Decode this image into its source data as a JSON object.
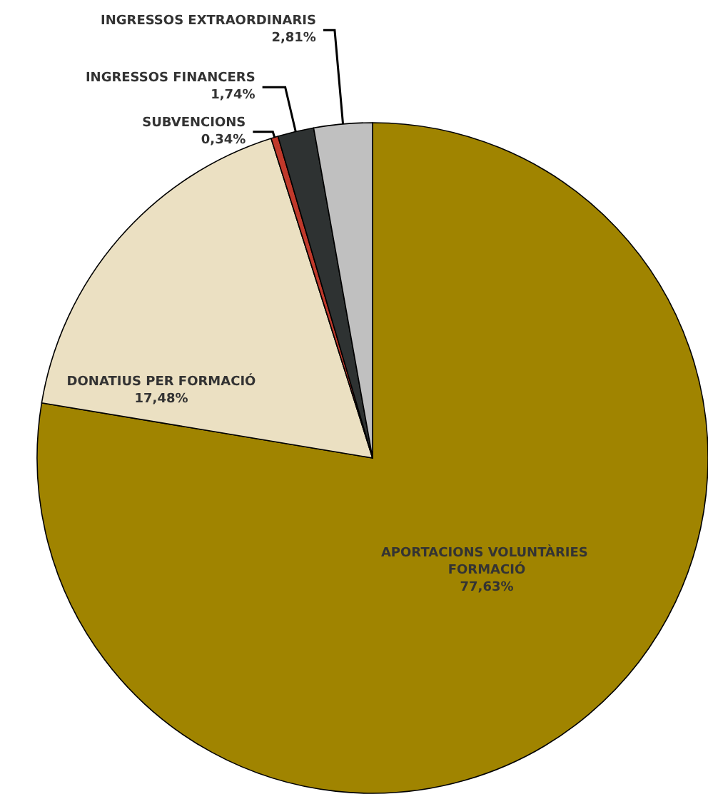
{
  "chart_data": {
    "type": "pie",
    "categories": [
      "APORTACIONS VOLUNTÀRIES FORMACIÓ",
      "DONATIUS PER FORMACIÓ",
      "SUBVENCIONS",
      "INGRESSOS FINANCERS",
      "INGRESSOS EXTRAORDINARIS"
    ],
    "values": [
      77.63,
      17.48,
      0.34,
      1.74,
      2.81
    ],
    "value_labels": [
      "77,63%",
      "17,48%",
      "0,34%",
      "1,74%",
      "2,81%"
    ],
    "colors": [
      "#a08400",
      "#ebe0c2",
      "#c0392b",
      "#2e3232",
      "#c0c0c0"
    ],
    "legend": false
  }
}
